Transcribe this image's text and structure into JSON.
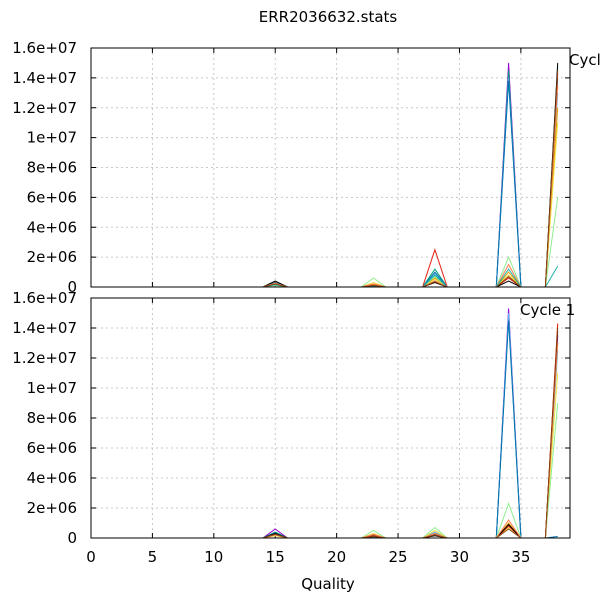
{
  "chart_data": {
    "title": "ERR2036632.stats",
    "xlabel": "Quality",
    "x_ticks": [
      0,
      5,
      10,
      15,
      20,
      25,
      30,
      35
    ],
    "xlim": [
      0,
      39
    ],
    "type": "line",
    "panels": [
      {
        "label": "Cycle",
        "ylim": [
          0,
          16000000
        ],
        "y_ticks": [
          "0",
          "2e+06",
          "4e+06",
          "6e+06",
          "8e+06",
          "1e+07",
          "1.2e+07",
          "1.4e+07",
          "1.6e+07"
        ],
        "y_tick_values": [
          0,
          2000000,
          4000000,
          6000000,
          8000000,
          10000000,
          12000000,
          14000000,
          16000000
        ],
        "grid": true,
        "x": [
          14,
          15,
          16,
          22,
          23,
          24,
          27,
          28,
          29,
          33,
          34,
          35,
          37,
          38
        ],
        "series": [
          {
            "color": "#9400d3",
            "values": [
              0,
              300000,
              0,
              0,
              100000,
              0,
              0,
              400000,
              0,
              0,
              15000000,
              0,
              0,
              0
            ]
          },
          {
            "color": "#009e73",
            "values": [
              0,
              250000,
              0,
              0,
              100000,
              0,
              0,
              1200000,
              0,
              0,
              14500000,
              0,
              0,
              14800000
            ]
          },
          {
            "color": "#56b4e9",
            "values": [
              0,
              200000,
              0,
              0,
              50000,
              0,
              0,
              900000,
              0,
              0,
              14000000,
              0,
              0,
              13000000
            ]
          },
          {
            "color": "#e69f00",
            "values": [
              0,
              350000,
              0,
              0,
              150000,
              0,
              0,
              600000,
              0,
              0,
              1000000,
              0,
              0,
              12000000
            ]
          },
          {
            "color": "#f0e442",
            "values": [
              0,
              150000,
              0,
              0,
              300000,
              0,
              0,
              500000,
              0,
              0,
              800000,
              0,
              0,
              11000000
            ]
          },
          {
            "color": "#0072b2",
            "values": [
              0,
              300000,
              0,
              0,
              100000,
              0,
              0,
              1000000,
              0,
              0,
              13800000,
              0,
              0,
              14000000
            ]
          },
          {
            "color": "#e51e10",
            "values": [
              0,
              200000,
              0,
              0,
              200000,
              0,
              0,
              2500000,
              0,
              0,
              600000,
              0,
              0,
              14300000
            ]
          },
          {
            "color": "#000000",
            "values": [
              0,
              400000,
              0,
              0,
              100000,
              0,
              0,
              300000,
              0,
              0,
              400000,
              0,
              0,
              15000000
            ]
          },
          {
            "color": "#90ee90",
            "values": [
              0,
              100000,
              0,
              0,
              600000,
              0,
              0,
              700000,
              0,
              0,
              2000000,
              0,
              0,
              6000000
            ]
          },
          {
            "color": "#ff7f50",
            "values": [
              0,
              250000,
              0,
              0,
              200000,
              0,
              0,
              400000,
              0,
              0,
              1500000,
              0,
              0,
              13500000
            ]
          },
          {
            "color": "#20b2aa",
            "values": [
              0,
              150000,
              0,
              0,
              80000,
              0,
              0,
              800000,
              0,
              0,
              1200000,
              0,
              0,
              1400000
            ]
          },
          {
            "color": "#8b4513",
            "values": [
              0,
              200000,
              0,
              0,
              100000,
              0,
              0,
              350000,
              0,
              0,
              700000,
              0,
              0,
              14500000
            ]
          }
        ]
      },
      {
        "label": "Cycle 1",
        "ylim": [
          0,
          16000000
        ],
        "y_ticks": [
          "0",
          "2e+06",
          "4e+06",
          "6e+06",
          "8e+06",
          "1e+07",
          "1.2e+07",
          "1.4e+07",
          "1.6e+07"
        ],
        "y_tick_values": [
          0,
          2000000,
          4000000,
          6000000,
          8000000,
          10000000,
          12000000,
          14000000,
          16000000
        ],
        "grid": true,
        "x": [
          14,
          15,
          16,
          22,
          23,
          24,
          27,
          28,
          29,
          33,
          34,
          35,
          37,
          38
        ],
        "series": [
          {
            "color": "#9400d3",
            "values": [
              0,
              600000,
              0,
              0,
              100000,
              0,
              0,
              200000,
              0,
              0,
              15300000,
              0,
              0,
              13500000
            ]
          },
          {
            "color": "#009e73",
            "values": [
              0,
              400000,
              0,
              0,
              200000,
              0,
              0,
              300000,
              0,
              0,
              14800000,
              0,
              0,
              13000000
            ]
          },
          {
            "color": "#56b4e9",
            "values": [
              0,
              300000,
              0,
              0,
              100000,
              0,
              0,
              400000,
              0,
              0,
              15000000,
              0,
              0,
              12500000
            ]
          },
          {
            "color": "#e69f00",
            "values": [
              0,
              200000,
              0,
              0,
              150000,
              0,
              0,
              300000,
              0,
              0,
              1000000,
              0,
              0,
              14200000
            ]
          },
          {
            "color": "#f0e442",
            "values": [
              0,
              150000,
              0,
              0,
              300000,
              0,
              0,
              500000,
              0,
              0,
              700000,
              0,
              0,
              11000000
            ]
          },
          {
            "color": "#0072b2",
            "values": [
              0,
              350000,
              0,
              0,
              100000,
              0,
              0,
              250000,
              0,
              0,
              14500000,
              0,
              0,
              100000
            ]
          },
          {
            "color": "#e51e10",
            "values": [
              0,
              250000,
              0,
              0,
              150000,
              0,
              0,
              200000,
              0,
              0,
              800000,
              0,
              0,
              14300000
            ]
          },
          {
            "color": "#000000",
            "values": [
              0,
              300000,
              0,
              0,
              100000,
              0,
              0,
              150000,
              0,
              0,
              900000,
              0,
              0,
              13800000
            ]
          },
          {
            "color": "#90ee90",
            "values": [
              0,
              200000,
              0,
              0,
              500000,
              0,
              0,
              700000,
              0,
              0,
              2300000,
              0,
              0,
              9000000
            ]
          },
          {
            "color": "#ff7f50",
            "values": [
              0,
              200000,
              0,
              0,
              250000,
              0,
              0,
              300000,
              0,
              0,
              1200000,
              0,
              0,
              13000000
            ]
          },
          {
            "color": "#8b4513",
            "values": [
              0,
              250000,
              0,
              0,
              100000,
              0,
              0,
              200000,
              0,
              0,
              600000,
              0,
              0,
              14000000
            ]
          }
        ]
      }
    ]
  }
}
